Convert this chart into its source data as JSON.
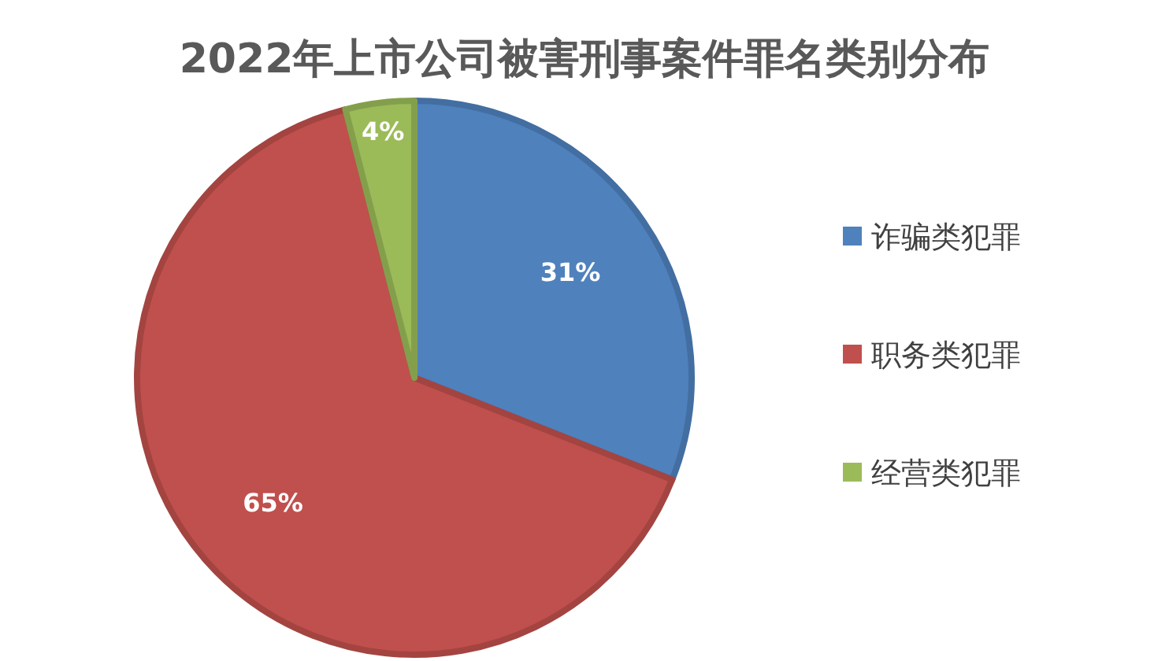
{
  "chart_data": {
    "type": "pie",
    "title": "2022年上市公司被害刑事案件罪名类别分布",
    "categories": [
      "诈骗类犯罪",
      "职务类犯罪",
      "经营类犯罪"
    ],
    "values": [
      31,
      65,
      4
    ],
    "colors": [
      "#4f81bd",
      "#c0504d",
      "#9bbb59"
    ],
    "value_labels": [
      "31%",
      "65%",
      "4%"
    ],
    "legend": "right"
  }
}
